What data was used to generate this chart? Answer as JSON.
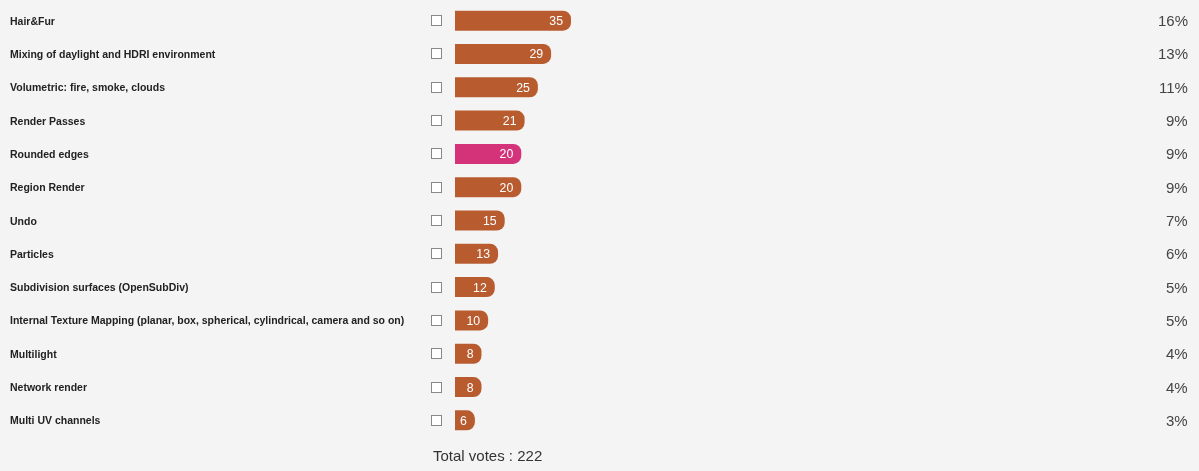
{
  "chart_data": {
    "type": "bar",
    "orientation": "horizontal",
    "categories": [
      "Hair&Fur",
      "Mixing of daylight and HDRI environment",
      "Volumetric: fire, smoke, clouds",
      "Render Passes",
      "Rounded edges",
      "Region Render",
      "Undo",
      "Particles",
      "Subdivision surfaces (OpenSubDiv)",
      "Internal Texture Mapping (planar, box, spherical, cylindrical, camera and so on)",
      "Multilight",
      "Network render",
      "Multi UV channels"
    ],
    "values": [
      35,
      29,
      25,
      21,
      20,
      20,
      15,
      13,
      12,
      10,
      8,
      8,
      6
    ],
    "colors": [
      "#b85c30",
      "#b85c30",
      "#b85c30",
      "#b85c30",
      "#d4337a",
      "#b85c30",
      "#b85c30",
      "#b85c30",
      "#b85c30",
      "#b85c30",
      "#b85c30",
      "#b85c30",
      "#b85c30"
    ],
    "data_labels": true,
    "annotations": [
      "16%",
      "13%",
      "11%",
      "9%",
      "9%",
      "9%",
      "7%",
      "6%",
      "5%",
      "5%",
      "4%",
      "4%",
      "3%",
      "Total votes : 222"
    ]
  }
}
